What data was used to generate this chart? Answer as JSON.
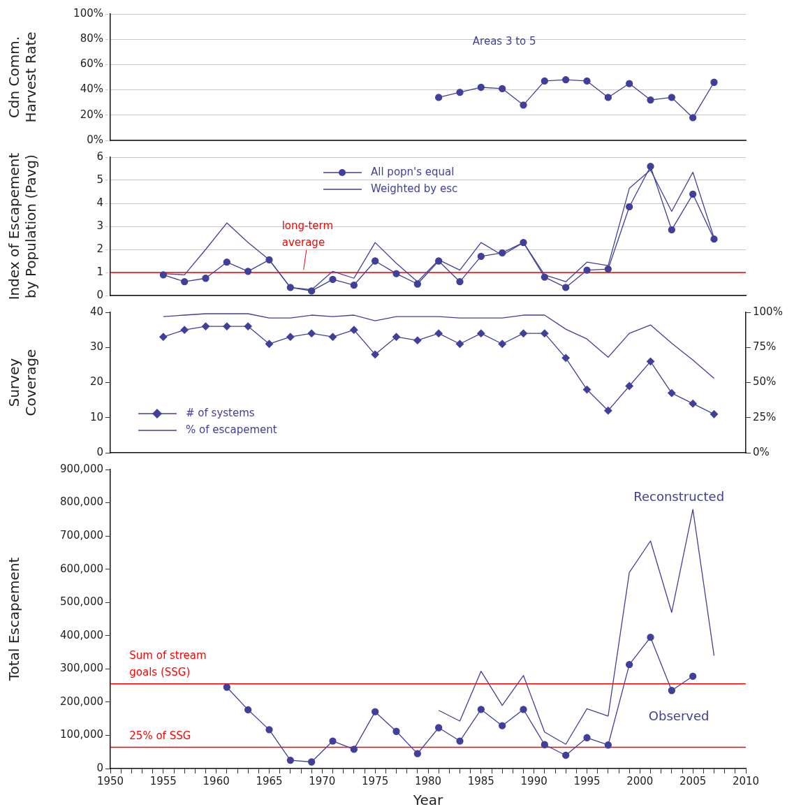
{
  "chart_data": [
    {
      "type": "line",
      "ylabel": "Cdn Comm.\nHarvest Rate",
      "annotations": [
        "Areas 3 to 5"
      ],
      "xlim": [
        1950,
        2010
      ],
      "ylim": [
        0,
        100
      ],
      "yticks": [
        {
          "value": 0,
          "label": "0%"
        },
        {
          "value": 20,
          "label": "20%"
        },
        {
          "value": 40,
          "label": "40%"
        },
        {
          "value": 60,
          "label": "60%"
        },
        {
          "value": 80,
          "label": "80%"
        },
        {
          "value": 100,
          "label": "100%"
        }
      ],
      "grid": "y",
      "legend": false,
      "tick_labels": "y",
      "marker": "circle",
      "series": [
        {
          "color": "#40409a",
          "x": [
            1981,
            1983,
            1985,
            1987,
            1989,
            1991,
            1993,
            1995,
            1997,
            1999,
            2001,
            2003,
            2005,
            2007
          ],
          "values": [
            34,
            38,
            42,
            41,
            28,
            47,
            48,
            47,
            34,
            45,
            32,
            34,
            18,
            46
          ]
        }
      ]
    },
    {
      "type": "line",
      "ylabel": "Index of Escapement\nby Population (Pavg)",
      "xlim": [
        1950,
        2010
      ],
      "ylim": [
        0,
        6
      ],
      "yticks": [
        0,
        1,
        2,
        3,
        4,
        5,
        6
      ],
      "grid": "y",
      "legend": "top",
      "tick_labels": "y",
      "ref_lines": [
        {
          "axis": "y",
          "value": 1,
          "label": "long-term average",
          "color": "#ff0000"
        }
      ],
      "series": [
        {
          "name": "All popn's equal",
          "color": "#40409a",
          "marker": "circle",
          "x": [
            1955,
            1957,
            1959,
            1961,
            1963,
            1965,
            1967,
            1969,
            1971,
            1973,
            1975,
            1977,
            1979,
            1981,
            1983,
            1985,
            1987,
            1989,
            1991,
            1993,
            1995,
            1997,
            1999,
            2001,
            2003,
            2005,
            2007
          ],
          "values": [
            0.9,
            0.6,
            0.75,
            1.45,
            1.05,
            1.55,
            0.35,
            0.2,
            0.7,
            0.45,
            1.5,
            0.95,
            0.5,
            1.5,
            0.6,
            1.7,
            1.85,
            2.3,
            0.8,
            0.35,
            1.1,
            1.15,
            3.85,
            5.6,
            2.85,
            4.4,
            2.45
          ]
        },
        {
          "name": "Weighted by esc",
          "color": "#40409a",
          "marker": "none",
          "x": [
            1955,
            1957,
            1959,
            1961,
            1963,
            1965,
            1967,
            1969,
            1971,
            1973,
            1975,
            1977,
            1979,
            1981,
            1983,
            1985,
            1987,
            1989,
            1991,
            1993,
            1995,
            1997,
            1999,
            2001,
            2003,
            2005,
            2007
          ],
          "values": [
            0.95,
            0.9,
            2.0,
            3.15,
            2.3,
            1.55,
            0.35,
            0.25,
            1.05,
            0.75,
            2.3,
            1.4,
            0.6,
            1.55,
            1.1,
            2.3,
            1.75,
            2.3,
            0.9,
            0.6,
            1.45,
            1.3,
            4.65,
            5.45,
            3.65,
            5.35,
            2.5
          ]
        }
      ]
    },
    {
      "type": "line",
      "ylabel": "Survey\nCoverage",
      "xlim": [
        1950,
        2010
      ],
      "ylim": [
        0,
        40
      ],
      "yticks": [
        0,
        10,
        20,
        30,
        40
      ],
      "y2lim": [
        0,
        100
      ],
      "y2ticks": [
        {
          "value": 0,
          "label": "0%"
        },
        {
          "value": 25,
          "label": "25%"
        },
        {
          "value": 50,
          "label": "50%"
        },
        {
          "value": 75,
          "label": "75%"
        },
        {
          "value": 100,
          "label": "100%"
        }
      ],
      "grid": false,
      "legend": "bottom left",
      "tick_labels": "y",
      "series": [
        {
          "name": "# of systems",
          "color": "#40409a",
          "marker": "diamond",
          "x": [
            1955,
            1957,
            1959,
            1961,
            1963,
            1965,
            1967,
            1969,
            1971,
            1973,
            1975,
            1977,
            1979,
            1981,
            1983,
            1985,
            1987,
            1989,
            1991,
            1993,
            1995,
            1997,
            1999,
            2001,
            2003,
            2005,
            2007
          ],
          "values": [
            33,
            35,
            36,
            36,
            36,
            31,
            33,
            34,
            33,
            35,
            28,
            33,
            32,
            34,
            31,
            34,
            31,
            34,
            34,
            27,
            18,
            12,
            19,
            26,
            17,
            14,
            11
          ]
        },
        {
          "name": "% of escapement",
          "color": "#40409a",
          "marker": "none",
          "axis": "y2",
          "x": [
            1955,
            1957,
            1959,
            1961,
            1963,
            1965,
            1967,
            1969,
            1971,
            1973,
            1975,
            1977,
            1979,
            1981,
            1983,
            1985,
            1987,
            1989,
            1991,
            1993,
            1995,
            1997,
            1999,
            2001,
            2003,
            2005,
            2007
          ],
          "values": [
            97,
            98,
            99,
            99,
            99,
            96,
            96,
            98,
            97,
            98,
            94,
            97,
            97,
            97,
            96,
            96,
            96,
            98,
            98,
            88,
            81,
            68,
            85,
            91,
            78,
            66,
            53
          ]
        }
      ]
    },
    {
      "type": "line",
      "xlabel": "Year",
      "ylabel": "Total Escapement",
      "xlim": [
        1950,
        2010
      ],
      "xticks": [
        1950,
        {
          "value": 1951,
          "label": null
        },
        {
          "value": 1952,
          "label": null
        },
        {
          "value": 1953,
          "label": null
        },
        {
          "value": 1954,
          "label": null
        },
        1955,
        {
          "value": 1956,
          "label": null
        },
        {
          "value": 1957,
          "label": null
        },
        {
          "value": 1958,
          "label": null
        },
        {
          "value": 1959,
          "label": null
        },
        1960,
        {
          "value": 1961,
          "label": null
        },
        {
          "value": 1962,
          "label": null
        },
        {
          "value": 1963,
          "label": null
        },
        {
          "value": 1964,
          "label": null
        },
        1965,
        {
          "value": 1966,
          "label": null
        },
        {
          "value": 1967,
          "label": null
        },
        {
          "value": 1968,
          "label": null
        },
        {
          "value": 1969,
          "label": null
        },
        1970,
        {
          "value": 1971,
          "label": null
        },
        {
          "value": 1972,
          "label": null
        },
        {
          "value": 1973,
          "label": null
        },
        {
          "value": 1974,
          "label": null
        },
        1975,
        {
          "value": 1976,
          "label": null
        },
        {
          "value": 1977,
          "label": null
        },
        {
          "value": 1978,
          "label": null
        },
        {
          "value": 1979,
          "label": null
        },
        1980,
        {
          "value": 1981,
          "label": null
        },
        {
          "value": 1982,
          "label": null
        },
        {
          "value": 1983,
          "label": null
        },
        {
          "value": 1984,
          "label": null
        },
        1985,
        {
          "value": 1986,
          "label": null
        },
        {
          "value": 1987,
          "label": null
        },
        {
          "value": 1988,
          "label": null
        },
        {
          "value": 1989,
          "label": null
        },
        1990,
        {
          "value": 1991,
          "label": null
        },
        {
          "value": 1992,
          "label": null
        },
        {
          "value": 1993,
          "label": null
        },
        {
          "value": 1994,
          "label": null
        },
        1995,
        {
          "value": 1996,
          "label": null
        },
        {
          "value": 1997,
          "label": null
        },
        {
          "value": 1998,
          "label": null
        },
        {
          "value": 1999,
          "label": null
        },
        2000,
        {
          "value": 2001,
          "label": null
        },
        {
          "value": 2002,
          "label": null
        },
        {
          "value": 2003,
          "label": null
        },
        {
          "value": 2004,
          "label": null
        },
        2005,
        {
          "value": 2006,
          "label": null
        },
        {
          "value": 2007,
          "label": null
        },
        {
          "value": 2008,
          "label": null
        },
        {
          "value": 2009,
          "label": null
        },
        2010
      ],
      "ylim": [
        0,
        900000
      ],
      "yticks": [
        {
          "value": 0,
          "label": "0"
        },
        {
          "value": 100000,
          "label": "100,000"
        },
        {
          "value": 200000,
          "label": "200,000"
        },
        {
          "value": 300000,
          "label": "300,000"
        },
        {
          "value": 400000,
          "label": "400,000"
        },
        {
          "value": 500000,
          "label": "500,000"
        },
        {
          "value": 600000,
          "label": "600,000"
        },
        {
          "value": 700000,
          "label": "700,000"
        },
        {
          "value": 800000,
          "label": "800,000"
        },
        {
          "value": 900000,
          "label": "900,000"
        }
      ],
      "grid": false,
      "legend": false,
      "ref_lines": [
        {
          "axis": "y",
          "value": 255000,
          "label": "Sum of stream goals (SSG)",
          "color": "#ff0000"
        },
        {
          "axis": "y",
          "value": 64000,
          "label": "25% of SSG",
          "color": "#ff0000"
        }
      ],
      "series": [
        {
          "name": "Reconstructed",
          "color": "#40409a",
          "marker": "none",
          "x": [
            1981,
            1983,
            1985,
            1987,
            1989,
            1991,
            1993,
            1995,
            1997,
            1999,
            2001,
            2003,
            2005,
            2007
          ],
          "values": [
            175000,
            143000,
            293000,
            190000,
            280000,
            110000,
            73000,
            180000,
            158000,
            590000,
            685000,
            470000,
            780000,
            340000
          ]
        },
        {
          "name": "Observed",
          "color": "#40409a",
          "marker": "circle",
          "x": [
            1961,
            1963,
            1965,
            1967,
            1969,
            1971,
            1973,
            1975,
            1977,
            1979,
            1981,
            1983,
            1985,
            1987,
            1989,
            1991,
            1993,
            1995,
            1997,
            1999,
            2001,
            2003,
            2005
          ],
          "values": [
            245000,
            177000,
            117000,
            25000,
            20000,
            83000,
            58000,
            171000,
            112000,
            45000,
            123000,
            83000,
            178000,
            129000,
            178000,
            72000,
            40000,
            93000,
            71000,
            313000,
            395000,
            235000,
            278000
          ]
        }
      ]
    }
  ]
}
